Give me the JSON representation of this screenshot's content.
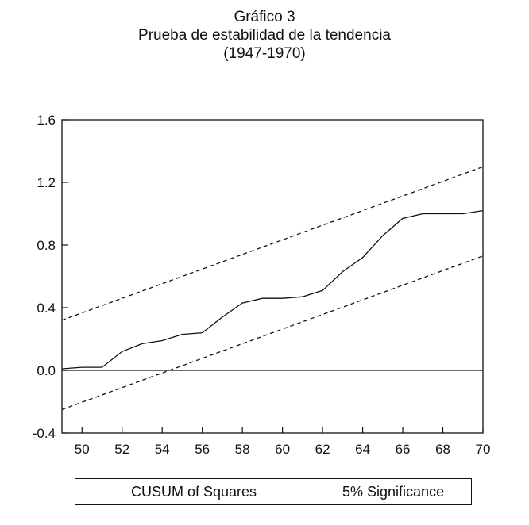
{
  "title": {
    "line1": "Gráfico 3",
    "line2": "Prueba de estabilidad de la tendencia",
    "line3": "(1947-1970)"
  },
  "chart_data": {
    "type": "line",
    "ylim": [
      -0.4,
      1.6
    ],
    "xlim": [
      49,
      70
    ],
    "yticks": [
      {
        "value": -0.4,
        "label": "-0.4"
      },
      {
        "value": 0.0,
        "label": "0.0"
      },
      {
        "value": 0.4,
        "label": "0.4"
      },
      {
        "value": 0.8,
        "label": "0.8"
      },
      {
        "value": 1.2,
        "label": "1.2"
      },
      {
        "value": 1.6,
        "label": "1.6"
      }
    ],
    "xticks": [
      {
        "value": 50,
        "label": "50"
      },
      {
        "value": 52,
        "label": "52"
      },
      {
        "value": 54,
        "label": "54"
      },
      {
        "value": 56,
        "label": "56"
      },
      {
        "value": 58,
        "label": "58"
      },
      {
        "value": 60,
        "label": "60"
      },
      {
        "value": 62,
        "label": "62"
      },
      {
        "value": 64,
        "label": "64"
      },
      {
        "value": 66,
        "label": "66"
      },
      {
        "value": 68,
        "label": "68"
      },
      {
        "value": 70,
        "label": "70"
      }
    ],
    "zero_line": 0.0,
    "series": [
      {
        "name": "CUSUM of Squares",
        "style": "solid",
        "color": "#111111",
        "x": [
          49,
          50,
          51,
          52,
          53,
          54,
          55,
          56,
          57,
          58,
          59,
          60,
          61,
          62,
          63,
          64,
          65,
          66,
          67,
          68,
          69,
          70
        ],
        "y": [
          0.01,
          0.02,
          0.02,
          0.12,
          0.17,
          0.19,
          0.23,
          0.24,
          0.34,
          0.43,
          0.46,
          0.46,
          0.47,
          0.51,
          0.63,
          0.72,
          0.86,
          0.97,
          1.0,
          1.0,
          1.0,
          1.02
        ]
      },
      {
        "name": "5% Significance",
        "style": "dashed",
        "color": "#111111",
        "x": [
          49,
          70
        ],
        "y": [
          0.32,
          1.3
        ]
      },
      {
        "name": "",
        "style": "dashed",
        "color": "#111111",
        "x": [
          49,
          70
        ],
        "y": [
          -0.25,
          0.73
        ]
      }
    ],
    "legend": {
      "position": "bottom",
      "entries": [
        {
          "label": "CUSUM of Squares",
          "style": "solid"
        },
        {
          "label": "5% Significance",
          "style": "dashed"
        }
      ]
    }
  }
}
